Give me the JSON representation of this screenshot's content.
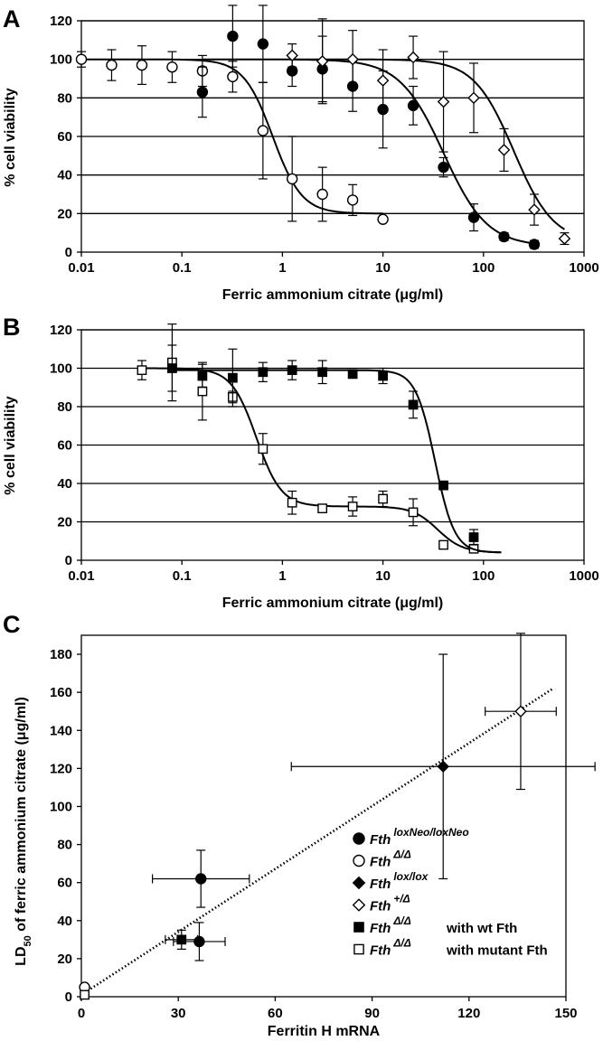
{
  "chart_data": [
    {
      "panel": "A",
      "type": "scatter",
      "xscale": "log",
      "xlabel": "Ferric ammonium citrate (μg/ml)",
      "ylabel": "% cell viability",
      "xlim": [
        0.01,
        1000
      ],
      "ylim": [
        0,
        120
      ],
      "xticks": [
        "0.01",
        "0.1",
        "1",
        "10",
        "100",
        "1000"
      ],
      "yticks": [
        "0",
        "20",
        "40",
        "60",
        "80",
        "100",
        "120"
      ],
      "grid": "horizontal",
      "series": [
        {
          "marker": "open-circle",
          "x": [
            0.01,
            0.02,
            0.04,
            0.08,
            0.16,
            0.32,
            0.64,
            1.25,
            2.5,
            5,
            10
          ],
          "y": [
            100,
            97,
            97,
            96,
            94,
            91,
            63,
            38,
            30,
            27,
            17
          ],
          "err": [
            4,
            8,
            10,
            8,
            8,
            8,
            25,
            22,
            14,
            8,
            0
          ],
          "fit": {
            "top": 100,
            "bottom": 20,
            "ec50": 0.8,
            "hill": 3.0
          }
        },
        {
          "marker": "filled-circle",
          "x": [
            0.16,
            0.32,
            0.64,
            1.25,
            2.5,
            5,
            10,
            20,
            40,
            80,
            160,
            320
          ],
          "y": [
            83,
            112,
            108,
            94,
            95,
            86,
            74,
            76,
            44,
            18,
            8,
            4
          ],
          "err": [
            13,
            16,
            20,
            8,
            17,
            13,
            20,
            10,
            5,
            7,
            2,
            2
          ],
          "fit": {
            "top": 100,
            "bottom": 3,
            "ec50": 40,
            "hill": 2.0
          }
        },
        {
          "marker": "open-diamond",
          "x": [
            1.25,
            2.5,
            5,
            10,
            20,
            40,
            80,
            160,
            320,
            640
          ],
          "y": [
            102,
            99,
            100,
            89,
            101,
            78,
            80,
            53,
            22,
            7
          ],
          "err": [
            6,
            22,
            15,
            16,
            11,
            26,
            18,
            11,
            8,
            3
          ],
          "fit": {
            "top": 100,
            "bottom": 5,
            "ec50": 200,
            "hill": 2.2
          }
        }
      ]
    },
    {
      "panel": "B",
      "type": "scatter",
      "xscale": "log",
      "xlabel": "Ferric ammonium citrate (μg/ml)",
      "ylabel": "% cell viability",
      "xlim": [
        0.01,
        1000
      ],
      "ylim": [
        0,
        120
      ],
      "xticks": [
        "0.01",
        "0.1",
        "1",
        "10",
        "100",
        "1000"
      ],
      "yticks": [
        "0",
        "20",
        "40",
        "60",
        "80",
        "100",
        "120"
      ],
      "grid": "horizontal",
      "series": [
        {
          "marker": "open-square",
          "x": [
            0.04,
            0.08,
            0.16,
            0.32,
            0.64,
            1.25,
            2.5,
            5,
            10,
            20,
            40,
            80
          ],
          "y": [
            99,
            103,
            88,
            85,
            58,
            30,
            27,
            28,
            32,
            25,
            8,
            6
          ],
          "err": [
            5,
            20,
            15,
            3,
            8,
            6,
            2,
            5,
            4,
            7,
            2,
            2
          ],
          "fit": {
            "two_step": true,
            "top": 100,
            "mid": 28,
            "bottom": 4,
            "ec50_a": 0.55,
            "hill_a": 3.5,
            "ec50_b": 35,
            "hill_b": 3.5,
            "xmax": 150
          }
        },
        {
          "marker": "filled-square",
          "x": [
            0.08,
            0.16,
            0.32,
            0.64,
            1.25,
            2.5,
            5,
            10,
            20,
            40,
            80
          ],
          "y": [
            100,
            96,
            95,
            98,
            99,
            98,
            97,
            96,
            81,
            39,
            12
          ],
          "err": [
            12,
            6,
            15,
            5,
            5,
            6,
            2,
            4,
            7,
            2,
            4
          ],
          "fit": {
            "top": 99,
            "bottom": 4,
            "ec50": 33,
            "hill": 4.5,
            "xmax": 150
          }
        }
      ]
    },
    {
      "panel": "C",
      "type": "scatter",
      "xlabel": "Ferritin H mRNA",
      "ylabel": "LD50 of ferric ammonium citrate (μg/ml)",
      "xlim": [
        0,
        150
      ],
      "ylim": [
        0,
        190
      ],
      "xticks": [
        "0",
        "30",
        "60",
        "90",
        "120",
        "150"
      ],
      "yticks": [
        "0",
        "20",
        "40",
        "60",
        "80",
        "100",
        "120",
        "140",
        "160",
        "180"
      ],
      "grid": "none",
      "trendline": {
        "style": "dotted",
        "x": [
          0,
          146
        ],
        "y": [
          1,
          162
        ]
      },
      "points": [
        {
          "series": "FthloxNeo/loxNeo",
          "marker": "filled-circle",
          "x": 37,
          "y": 62,
          "xerr": 15,
          "yerr": 15
        },
        {
          "series": "FthloxNeo/loxNeo",
          "marker": "filled-circle",
          "x": 36.5,
          "y": 29,
          "xerr": 8,
          "yerr": 10
        },
        {
          "series": "FthΔ/Δ",
          "marker": "open-circle",
          "x": 1,
          "y": 5,
          "xerr": 0,
          "yerr": 0
        },
        {
          "series": "Fthlox/lox",
          "marker": "filled-diamond",
          "x": 112,
          "y": 121,
          "xerr": 47,
          "yerr": 59
        },
        {
          "series": "Fth+/Δ",
          "marker": "open-diamond",
          "x": 136,
          "y": 150,
          "xerr": 11,
          "yerr": 41
        },
        {
          "series": "FthΔ/Δ with wt Fth",
          "marker": "filled-square",
          "x": 31,
          "y": 30,
          "xerr": 5,
          "yerr": 5
        },
        {
          "series": "FthΔ/Δ with mutant Fth",
          "marker": "open-square",
          "x": 1,
          "y": 1,
          "xerr": 0,
          "yerr": 2
        }
      ],
      "legend": {
        "placement": "lower-right",
        "entries": [
          {
            "marker": "filled-circle",
            "base": "Fth",
            "sup": "loxNeo/loxNeo",
            "suffix": ""
          },
          {
            "marker": "open-circle",
            "base": "Fth",
            "sup": "Δ/Δ",
            "suffix": ""
          },
          {
            "marker": "filled-diamond",
            "base": "Fth",
            "sup": "lox/lox",
            "suffix": ""
          },
          {
            "marker": "open-diamond",
            "base": "Fth",
            "sup": "+/Δ",
            "suffix": ""
          },
          {
            "marker": "filled-square",
            "base": "Fth",
            "sup": "Δ/Δ",
            "suffix": "with wt Fth"
          },
          {
            "marker": "open-square",
            "base": "Fth",
            "sup": "Δ/Δ",
            "suffix": "with mutant Fth"
          }
        ]
      }
    }
  ],
  "labels": {
    "panel_a": "A",
    "panel_b": "B",
    "panel_c": "C",
    "a_xlabel": "Ferric ammonium citrate (μg/ml)",
    "a_ylabel": "% cell viability",
    "b_xlabel": "Ferric ammonium citrate (μg/ml)",
    "b_ylabel": "% cell viability",
    "c_xlabel": "Ferritin H mRNA",
    "c_ylabel_pre": "LD",
    "c_ylabel_sub": "50",
    "c_ylabel_post": " of ferric ammonium citrate  (μg/ml)"
  }
}
